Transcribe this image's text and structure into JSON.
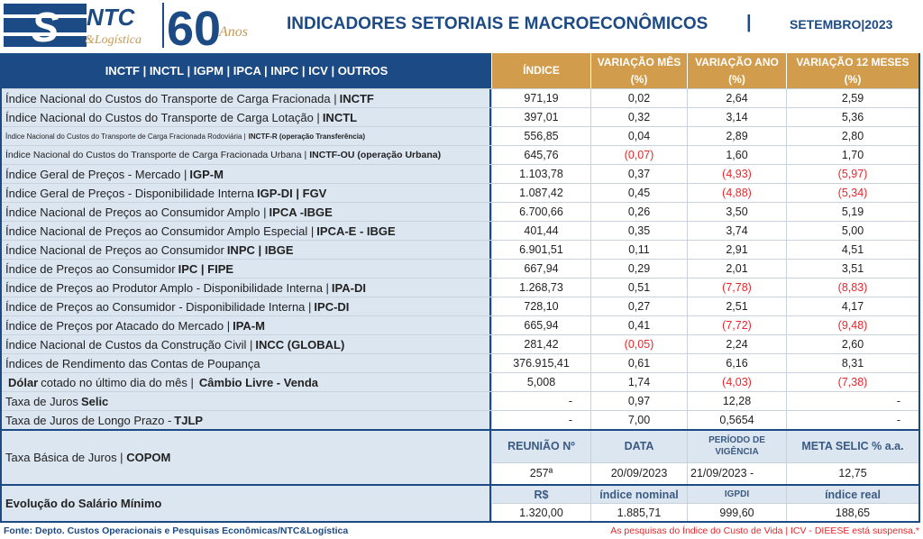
{
  "header": {
    "logo_text": "NTC & Logística",
    "anniversary": "60 Anos",
    "title": "INDICADORES SETORIAIS E MACROECONÔMICOS",
    "separator": "|",
    "period": "SETEMBRO|2023"
  },
  "table": {
    "nav": "INCTF | INCTL | IGPM | IPCA | INPC | ICV | OUTROS",
    "columns": [
      "ÍNDICE",
      "VARIAÇÃO MÊS (%)",
      "VARIAÇÃO ANO (%)",
      "VARIAÇÃO 12 MESES (%)"
    ],
    "rows": [
      {
        "label": [
          [
            "Índice Nacional do Custos do Transporte de Carga Fracionada |",
            0
          ],
          [
            "INCTF",
            1
          ]
        ],
        "size": "",
        "values": [
          "971,19",
          "0,02",
          "2,64",
          "2,59"
        ]
      },
      {
        "label": [
          [
            "Índice Nacional do Custos do Transporte de Carga Lotação |",
            0
          ],
          [
            "INCTL",
            1
          ]
        ],
        "size": "",
        "values": [
          "397,01",
          "0,32",
          "3,14",
          "5,36"
        ]
      },
      {
        "label": [
          [
            "Índice Nacional do Custos do Transporte de Carga Fracionada Rodoviária |",
            0
          ],
          [
            "INCTF-R (operação Transferência)",
            1
          ]
        ],
        "size": "sm",
        "values": [
          "556,85",
          "0,04",
          "2,89",
          "2,80"
        ]
      },
      {
        "label": [
          [
            "Índice Nacional do Custos do Transporte de Carga Fracionada Urbana |",
            0
          ],
          [
            "INCTF-OU (operação Urbana)",
            1
          ]
        ],
        "size": "md",
        "values": [
          "645,76",
          "(0,07)",
          "1,60",
          "1,70"
        ]
      },
      {
        "label": [
          [
            "Índice Geral de Preços - Mercado |",
            0
          ],
          [
            "IGP-M",
            1
          ]
        ],
        "size": "",
        "values": [
          "1.103,78",
          "0,37",
          "(4,93)",
          "(5,97)"
        ]
      },
      {
        "label": [
          [
            "Índice Geral de Preços - Disponibilidade Interna",
            0
          ],
          [
            "IGP-DI | FGV",
            1
          ]
        ],
        "size": "",
        "values": [
          "1.087,42",
          "0,45",
          "(4,88)",
          "(5,34)"
        ]
      },
      {
        "label": [
          [
            "Índice Nacional de Preços ao Consumidor Amplo |",
            0
          ],
          [
            "IPCA -IBGE",
            1
          ]
        ],
        "size": "",
        "values": [
          "6.700,66",
          "0,26",
          "3,50",
          "5,19"
        ]
      },
      {
        "label": [
          [
            "Índice Nacional de Preços ao Consumidor Amplo Especial |",
            0
          ],
          [
            "IPCA-E - IBGE",
            1
          ]
        ],
        "size": "",
        "values": [
          "401,44",
          "0,35",
          "3,74",
          "5,00"
        ]
      },
      {
        "label": [
          [
            "Índice Nacional de Preços ao Consumidor",
            0
          ],
          [
            "INPC | IBGE",
            1
          ]
        ],
        "size": "",
        "values": [
          "6.901,51",
          "0,11",
          "2,91",
          "4,51"
        ]
      },
      {
        "label": [
          [
            "Índice de Preços ao Consumidor",
            0
          ],
          [
            "IPC | FIPE",
            1
          ]
        ],
        "size": "",
        "values": [
          "667,94",
          "0,29",
          "2,01",
          "3,51"
        ]
      },
      {
        "label": [
          [
            "Índice de Preços ao Produtor Amplo - Disponibilidade Interna |",
            0
          ],
          [
            "IPA-DI",
            1
          ]
        ],
        "size": "",
        "values": [
          "1.268,73",
          "0,51",
          "(7,78)",
          "(8,83)"
        ]
      },
      {
        "label": [
          [
            "Índice de Preços ao Consumidor - Disponibilidade Interna |",
            0
          ],
          [
            "IPC-DI",
            1
          ]
        ],
        "size": "",
        "values": [
          "728,10",
          "0,27",
          "2,51",
          "4,17"
        ]
      },
      {
        "label": [
          [
            "Índice de Preços por Atacado do Mercado |",
            0
          ],
          [
            "IPA-M",
            1
          ]
        ],
        "size": "",
        "values": [
          "665,94",
          "0,41",
          "(7,72)",
          "(9,48)"
        ]
      },
      {
        "label": [
          [
            "Índice Nacional de Custos da Construção Civil |",
            0
          ],
          [
            "INCC (GLOBAL)",
            1
          ]
        ],
        "size": "",
        "values": [
          "281,42",
          "(0,05)",
          "2,24",
          "2,60"
        ]
      },
      {
        "label": [
          [
            "Índices de Rendimento das Contas de Poupança",
            0
          ]
        ],
        "size": "",
        "values": [
          "376.915,41",
          "0,61",
          "6,16",
          "8,31"
        ]
      },
      {
        "label": [
          [
            "Dólar",
            1
          ],
          [
            "cotado no último dia do mês |",
            0
          ],
          [
            "Câmbio Livre - Venda",
            1
          ]
        ],
        "size": "",
        "values": [
          "5,008",
          "1,74",
          "(4,03)",
          "(7,38)"
        ]
      },
      {
        "label": [
          [
            "Taxa de Juros",
            0
          ],
          [
            "Selic",
            1
          ]
        ],
        "size": "",
        "values": [
          "-",
          "0,97",
          "12,28",
          "-"
        ],
        "right": [
          0,
          3
        ]
      },
      {
        "label": [
          [
            "Taxa de Juros de Longo Prazo -",
            0
          ],
          [
            "TJLP",
            1
          ]
        ],
        "size": "",
        "values": [
          "-",
          "7,00",
          "0,5654",
          "-"
        ],
        "right": [
          0,
          3
        ]
      }
    ]
  },
  "copom": {
    "label": "Taxa Básica de Juros |",
    "label_bold": "COPOM",
    "headers": [
      "REUNIÃO Nº",
      "DATA",
      "PERÍODO DE VIGÊNCIA",
      "META SELIC % a.a."
    ],
    "values": [
      "257ª",
      "20/09/2023",
      "21/09/2023 -",
      "12,75"
    ]
  },
  "salario": {
    "label": "Evolução do Salário Mínimo",
    "headers": [
      "R$",
      "índice nominal",
      "IGPDI",
      "índice real"
    ],
    "values": [
      "1.320,00",
      "1.885,71",
      "999,60",
      "188,65"
    ]
  },
  "footer": {
    "source": "Fonte: Depto. Custos Operacionais e Pesquisas Econômicas/NTC&Logística",
    "note": "As pesquisas do Índice do Custo de Vida | ICV - DIEESE está suspensa.*"
  },
  "colors": {
    "brand": "#1c4a84",
    "gold": "#d19c4c",
    "label_bg": "#dce6f1",
    "negative": "#e8262a"
  }
}
